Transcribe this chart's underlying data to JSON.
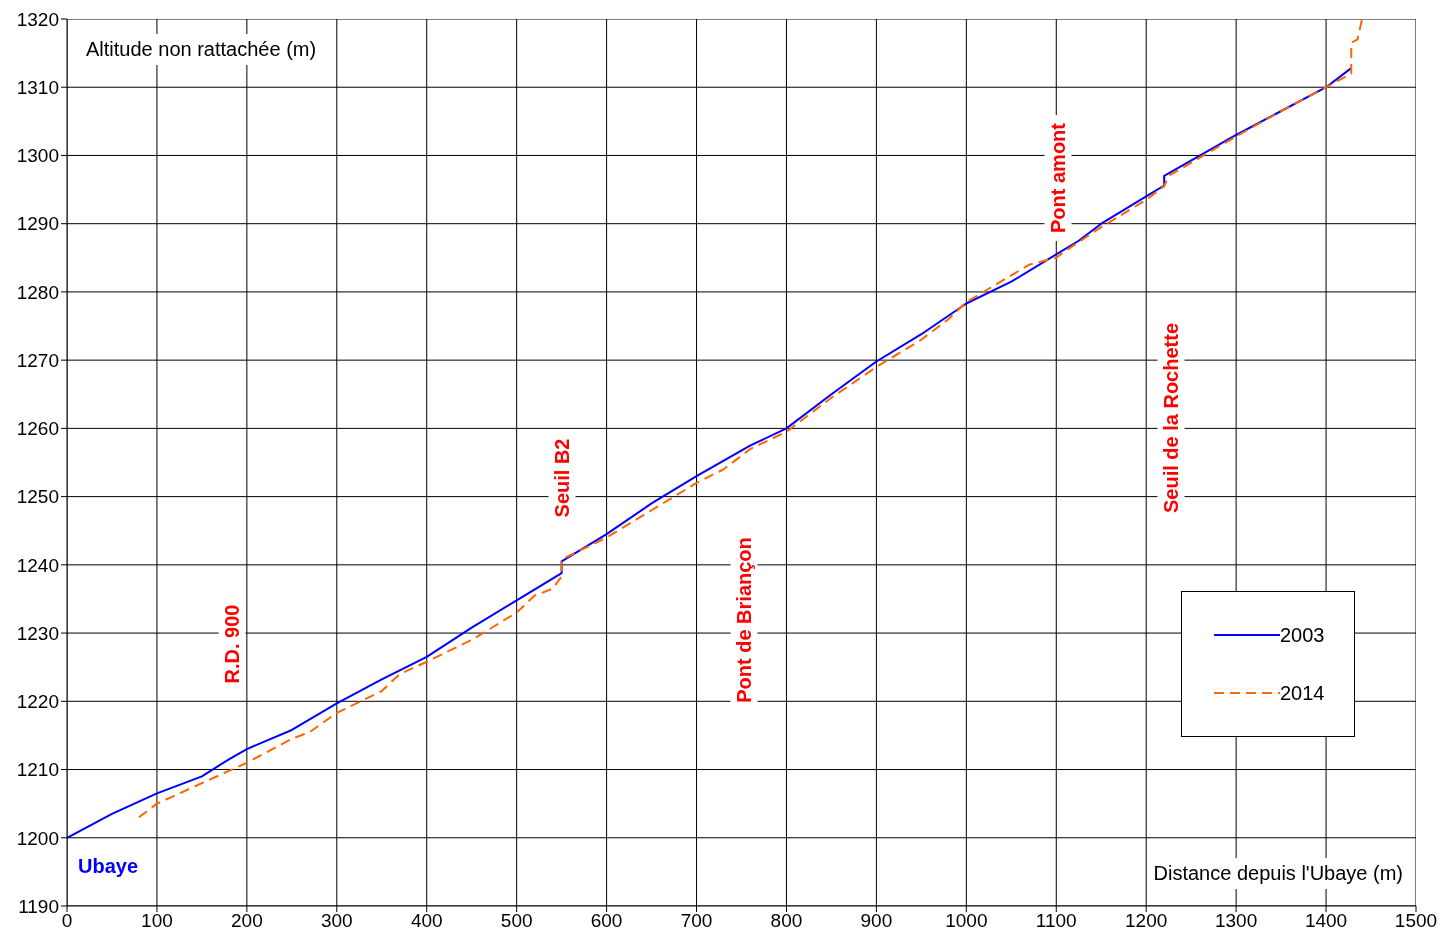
{
  "chart_data": {
    "type": "line",
    "xlabel": "Distance depuis l'Ubaye (m)",
    "ylabel": "Altitude non rattachée (m)",
    "xlim": [
      0,
      1500
    ],
    "xticks": [
      0,
      100,
      200,
      300,
      400,
      500,
      600,
      700,
      800,
      900,
      1000,
      1100,
      1200,
      1300,
      1400,
      1500
    ],
    "ylim": [
      1190,
      1320
    ],
    "yticks": [
      1190,
      1200,
      1210,
      1220,
      1230,
      1240,
      1250,
      1260,
      1270,
      1280,
      1290,
      1300,
      1310,
      1320
    ],
    "grid": true,
    "legend": "bottom right",
    "marker": "none",
    "series": [
      {
        "name": "2003",
        "color": "#0000ff",
        "line_style": "solid",
        "x": [
          0,
          50,
          100,
          150,
          180,
          200,
          250,
          300,
          350,
          400,
          450,
          500,
          550,
          550,
          600,
          650,
          700,
          760,
          800,
          850,
          900,
          950,
          1000,
          1050,
          1100,
          1125,
          1150,
          1200,
          1220,
          1220,
          1300,
          1400,
          1428
        ],
        "values": [
          1200,
          1203.5,
          1206.5,
          1209,
          1211.5,
          1213,
          1215.8,
          1219.7,
          1223.2,
          1226.5,
          1230.8,
          1234.8,
          1238.8,
          1240.5,
          1244.5,
          1249,
          1253,
          1257.5,
          1260,
          1265,
          1269.8,
          1273.8,
          1278.3,
          1281.5,
          1285.5,
          1287.5,
          1290,
          1294,
          1295.6,
          1297,
          1303,
          1310,
          1312.8
        ]
      },
      {
        "name": "2014",
        "color": "#ff6600",
        "line_style": "dashed",
        "x": [
          80,
          100,
          150,
          200,
          250,
          270,
          300,
          350,
          370,
          400,
          450,
          500,
          520,
          540,
          550,
          550,
          600,
          650,
          700,
          730,
          760,
          800,
          815,
          850,
          900,
          950,
          980,
          1000,
          1070,
          1100,
          1110,
          1150,
          1200,
          1220,
          1225,
          1300,
          1350,
          1400,
          1428,
          1428,
          1435,
          1440
        ],
        "values": [
          1203,
          1205,
          1208,
          1211,
          1214.5,
          1215.5,
          1218.3,
          1221.5,
          1224,
          1225.8,
          1229,
          1233,
          1235.5,
          1236.5,
          1238.3,
          1240.8,
          1244,
          1248,
          1252,
          1254,
          1257,
          1259.5,
          1261,
          1264.5,
          1269,
          1273,
          1276,
          1278.5,
          1284,
          1285,
          1286,
          1289.5,
          1293.5,
          1295.5,
          1297,
          1302.8,
          1306.5,
          1310,
          1312,
          1316.5,
          1317,
          1320
        ]
      }
    ],
    "annotations": [
      "R.D. 900",
      "Seuil B2",
      "Pont de Briançon",
      "Pont amont",
      "Seuil de la Rochette",
      "Ubaye"
    ]
  }
}
